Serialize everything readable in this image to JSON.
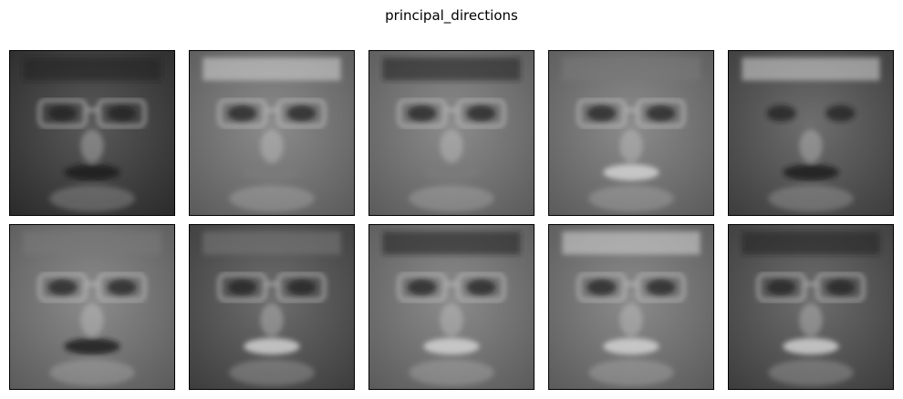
{
  "figure": {
    "title": "principal_directions",
    "colormap": "gray",
    "panels": [
      {
        "id": "component-1",
        "tone": "dark",
        "glasses": true,
        "mouth_tone": "dark",
        "forehead_tone": "dark"
      },
      {
        "id": "component-2",
        "tone": "mid",
        "glasses": true,
        "mouth_tone": "mid",
        "forehead_tone": "light"
      },
      {
        "id": "component-3",
        "tone": "mid",
        "glasses": true,
        "mouth_tone": "mid",
        "forehead_tone": "dark"
      },
      {
        "id": "component-4",
        "tone": "mid",
        "glasses": true,
        "mouth_tone": "light",
        "forehead_tone": "mid"
      },
      {
        "id": "component-5",
        "tone": "mid-dark",
        "glasses": false,
        "mouth_tone": "dark",
        "forehead_tone": "light"
      },
      {
        "id": "component-6",
        "tone": "mid",
        "glasses": true,
        "mouth_tone": "dark",
        "forehead_tone": "mid"
      },
      {
        "id": "component-7",
        "tone": "mid-dark",
        "glasses": true,
        "mouth_tone": "light",
        "forehead_tone": "mid"
      },
      {
        "id": "component-8",
        "tone": "mid",
        "glasses": true,
        "mouth_tone": "light",
        "forehead_tone": "dark"
      },
      {
        "id": "component-9",
        "tone": "mid",
        "glasses": true,
        "mouth_tone": "light",
        "forehead_tone": "light"
      },
      {
        "id": "component-10",
        "tone": "mid-dark",
        "glasses": true,
        "mouth_tone": "light",
        "forehead_tone": "dark"
      }
    ]
  }
}
